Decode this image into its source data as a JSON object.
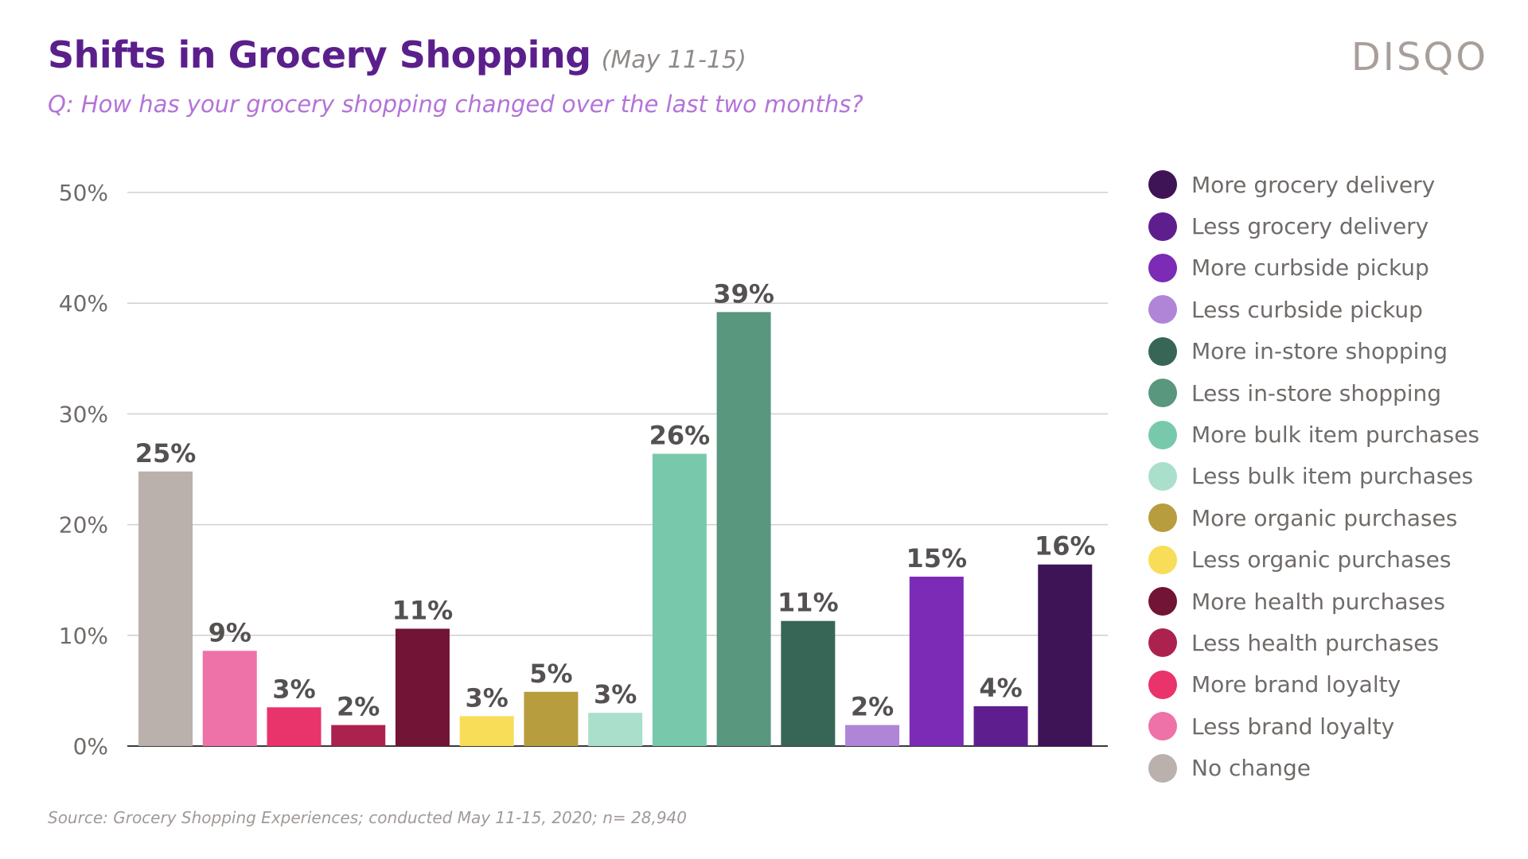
{
  "header": {
    "title": "Shifts in Grocery Shopping",
    "date": "(May 11-15)",
    "question": "Q: How has your grocery shopping changed over the last two months?",
    "logo": "DISQO"
  },
  "footer": {
    "source": "Source: Grocery Shopping Experiences; conducted May 11-15, 2020; n= 28,940"
  },
  "chart_data": {
    "type": "bar",
    "title": "Shifts in Grocery Shopping",
    "xlabel": "",
    "ylabel": "",
    "ylim": [
      0,
      50
    ],
    "yticks": [
      "0%",
      "10%",
      "20%",
      "30%",
      "40%",
      "50%"
    ],
    "grid": true,
    "legend_position": "right",
    "categories": [
      "No change",
      "Less brand loyalty",
      "More brand loyalty",
      "Less health purchases",
      "More health purchases",
      "Less organic purchases",
      "More organic purchases",
      "Less bulk item purchases",
      "More bulk item purchases",
      "Less in-store shopping",
      "More in-store shopping",
      "Less curbside pickup",
      "More curbside pickup",
      "Less grocery delivery",
      "More grocery delivery"
    ],
    "values": [
      24.8,
      8.6,
      3.5,
      1.9,
      10.6,
      2.7,
      4.9,
      3.0,
      26.4,
      39.2,
      11.3,
      1.9,
      15.3,
      3.6,
      16.4
    ],
    "labels": [
      "25%",
      "9%",
      "3%",
      "2%",
      "11%",
      "3%",
      "5%",
      "3%",
      "26%",
      "39%",
      "11%",
      "2%",
      "15%",
      "4%",
      "16%"
    ],
    "colors": [
      "#bab1ac",
      "#ee72a7",
      "#e9336b",
      "#ac224f",
      "#721435",
      "#f7dd58",
      "#b89d3e",
      "#a9dfcb",
      "#78c9ab",
      "#59977e",
      "#386656",
      "#b085d8",
      "#7b2bb5",
      "#5f1e8e",
      "#3e1457"
    ]
  },
  "legend": [
    {
      "label": "More grocery delivery",
      "color": "#3e1457"
    },
    {
      "label": "Less grocery delivery",
      "color": "#5f1e8e"
    },
    {
      "label": "More curbside pickup",
      "color": "#7b2bb5"
    },
    {
      "label": "Less curbside pickup",
      "color": "#b085d8"
    },
    {
      "label": "More in-store shopping",
      "color": "#386656"
    },
    {
      "label": "Less in-store shopping",
      "color": "#59977e"
    },
    {
      "label": "More bulk item purchases",
      "color": "#78c9ab"
    },
    {
      "label": "Less bulk item purchases",
      "color": "#a9dfcb"
    },
    {
      "label": "More organic purchases",
      "color": "#b89d3e"
    },
    {
      "label": "Less organic purchases",
      "color": "#f7dd58"
    },
    {
      "label": "More health purchases",
      "color": "#721435"
    },
    {
      "label": "Less health purchases",
      "color": "#ac224f"
    },
    {
      "label": "More brand loyalty",
      "color": "#e9336b"
    },
    {
      "label": "Less brand loyalty",
      "color": "#ee72a7"
    },
    {
      "label": "No change",
      "color": "#bab1ac"
    }
  ]
}
